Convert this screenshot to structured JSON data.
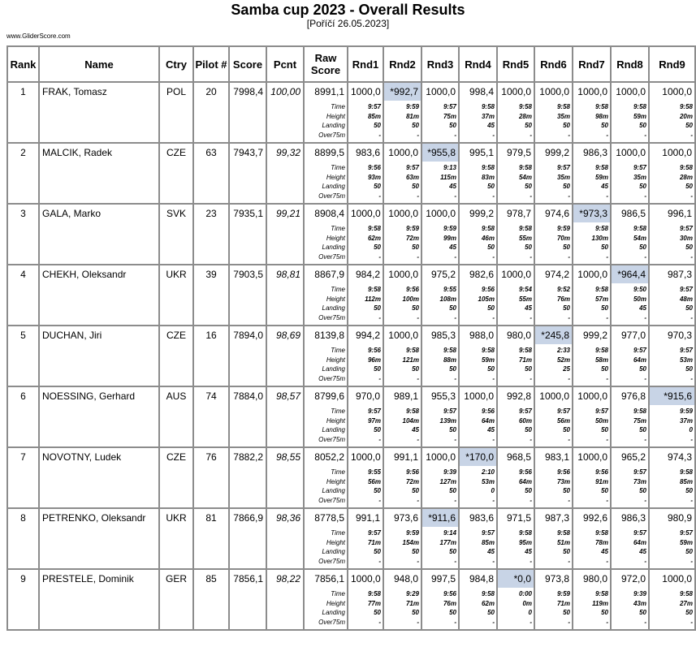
{
  "header": {
    "title": "Samba cup 2023 - Overall Results",
    "subtitle": "[Poříčí 26.05.2023]",
    "site": "www.GliderScore.com"
  },
  "columns": [
    "Rank",
    "Name",
    "Ctry",
    "Pilot #",
    "Score",
    "Pcnt",
    "Raw Score",
    "Rnd1",
    "Rnd2",
    "Rnd3",
    "Rnd4",
    "Rnd5",
    "Rnd6",
    "Rnd7",
    "Rnd8",
    "Rnd9"
  ],
  "detail_labels": [
    "Time",
    "Height",
    "Landing",
    "Over75m"
  ],
  "highlight_color": "#c8d4e6",
  "rows": [
    {
      "rank": "1",
      "name": "FRAK, Tomasz",
      "ctry": "POL",
      "pilot": "20",
      "score": "7998,4",
      "pcnt": "100,00",
      "raw": "8991,1",
      "rounds": [
        "1000,0",
        "*992,7",
        "1000,0",
        "998,4",
        "1000,0",
        "1000,0",
        "1000,0",
        "1000,0",
        "1000,0"
      ],
      "time": [
        "9:57",
        "9:59",
        "9:57",
        "9:58",
        "9:58",
        "9:58",
        "9:58",
        "9:58",
        "9:58"
      ],
      "height": [
        "85m",
        "81m",
        "75m",
        "37m",
        "28m",
        "35m",
        "98m",
        "59m",
        "20m"
      ],
      "landing": [
        "50",
        "50",
        "50",
        "45",
        "50",
        "50",
        "50",
        "50",
        "50"
      ],
      "over75m": [
        "-",
        "-",
        "-",
        "-",
        "-",
        "-",
        "-",
        "-",
        "-"
      ]
    },
    {
      "rank": "2",
      "name": "MALCIK, Radek",
      "ctry": "CZE",
      "pilot": "63",
      "score": "7943,7",
      "pcnt": "99,32",
      "raw": "8899,5",
      "rounds": [
        "983,6",
        "1000,0",
        "*955,8",
        "995,1",
        "979,5",
        "999,2",
        "986,3",
        "1000,0",
        "1000,0"
      ],
      "time": [
        "9:56",
        "9:57",
        "9:13",
        "9:58",
        "9:58",
        "9:57",
        "9:58",
        "9:57",
        "9:58"
      ],
      "height": [
        "93m",
        "63m",
        "115m",
        "83m",
        "54m",
        "35m",
        "59m",
        "35m",
        "28m"
      ],
      "landing": [
        "50",
        "50",
        "45",
        "50",
        "50",
        "50",
        "45",
        "50",
        "50"
      ],
      "over75m": [
        "-",
        "-",
        "-",
        "-",
        "-",
        "-",
        "-",
        "-",
        "-"
      ]
    },
    {
      "rank": "3",
      "name": "GALA, Marko",
      "ctry": "SVK",
      "pilot": "23",
      "score": "7935,1",
      "pcnt": "99,21",
      "raw": "8908,4",
      "rounds": [
        "1000,0",
        "1000,0",
        "1000,0",
        "999,2",
        "978,7",
        "974,6",
        "*973,3",
        "986,5",
        "996,1"
      ],
      "time": [
        "9:58",
        "9:59",
        "9:59",
        "9:58",
        "9:58",
        "9:59",
        "9:58",
        "9:58",
        "9:57"
      ],
      "height": [
        "62m",
        "72m",
        "99m",
        "46m",
        "55m",
        "70m",
        "130m",
        "54m",
        "30m"
      ],
      "landing": [
        "50",
        "50",
        "45",
        "50",
        "50",
        "50",
        "50",
        "50",
        "50"
      ],
      "over75m": [
        "-",
        "-",
        "-",
        "-",
        "-",
        "-",
        "-",
        "-",
        "-"
      ]
    },
    {
      "rank": "4",
      "name": "CHEKH, Oleksandr",
      "ctry": "UKR",
      "pilot": "39",
      "score": "7903,5",
      "pcnt": "98,81",
      "raw": "8867,9",
      "rounds": [
        "984,2",
        "1000,0",
        "975,2",
        "982,6",
        "1000,0",
        "974,2",
        "1000,0",
        "*964,4",
        "987,3"
      ],
      "time": [
        "9:58",
        "9:56",
        "9:55",
        "9:56",
        "9:54",
        "9:52",
        "9:58",
        "9:50",
        "9:57"
      ],
      "height": [
        "112m",
        "100m",
        "108m",
        "105m",
        "55m",
        "76m",
        "57m",
        "50m",
        "48m"
      ],
      "landing": [
        "50",
        "50",
        "50",
        "50",
        "45",
        "50",
        "50",
        "45",
        "50"
      ],
      "over75m": [
        "-",
        "-",
        "-",
        "-",
        "-",
        "-",
        "-",
        "-",
        "-"
      ]
    },
    {
      "rank": "5",
      "name": "DUCHAN, Jiri",
      "ctry": "CZE",
      "pilot": "16",
      "score": "7894,0",
      "pcnt": "98,69",
      "raw": "8139,8",
      "rounds": [
        "994,2",
        "1000,0",
        "985,3",
        "988,0",
        "980,0",
        "*245,8",
        "999,2",
        "977,0",
        "970,3"
      ],
      "time": [
        "9:56",
        "9:58",
        "9:58",
        "9:58",
        "9:58",
        "2:33",
        "9:58",
        "9:57",
        "9:57"
      ],
      "height": [
        "96m",
        "121m",
        "88m",
        "59m",
        "71m",
        "52m",
        "58m",
        "64m",
        "53m"
      ],
      "landing": [
        "50",
        "50",
        "50",
        "50",
        "50",
        "25",
        "50",
        "50",
        "50"
      ],
      "over75m": [
        "-",
        "-",
        "-",
        "-",
        "-",
        "-",
        "-",
        "-",
        "-"
      ]
    },
    {
      "rank": "6",
      "name": "NOESSING, Gerhard",
      "ctry": "AUS",
      "pilot": "74",
      "score": "7884,0",
      "pcnt": "98,57",
      "raw": "8799,6",
      "rounds": [
        "970,0",
        "989,1",
        "955,3",
        "1000,0",
        "992,8",
        "1000,0",
        "1000,0",
        "976,8",
        "*915,6"
      ],
      "time": [
        "9:57",
        "9:58",
        "9:57",
        "9:56",
        "9:57",
        "9:57",
        "9:57",
        "9:58",
        "9:59"
      ],
      "height": [
        "97m",
        "104m",
        "139m",
        "64m",
        "60m",
        "56m",
        "50m",
        "75m",
        "37m"
      ],
      "landing": [
        "50",
        "45",
        "50",
        "45",
        "50",
        "50",
        "50",
        "50",
        "0"
      ],
      "over75m": [
        "-",
        "-",
        "-",
        "-",
        "-",
        "-",
        "-",
        "-",
        "-"
      ]
    },
    {
      "rank": "7",
      "name": "NOVOTNY, Ludek",
      "ctry": "CZE",
      "pilot": "76",
      "score": "7882,2",
      "pcnt": "98,55",
      "raw": "8052,2",
      "rounds": [
        "1000,0",
        "991,1",
        "1000,0",
        "*170,0",
        "968,5",
        "983,1",
        "1000,0",
        "965,2",
        "974,3"
      ],
      "time": [
        "9:55",
        "9:56",
        "9:39",
        "2:10",
        "9:56",
        "9:56",
        "9:56",
        "9:57",
        "9:58"
      ],
      "height": [
        "56m",
        "72m",
        "127m",
        "53m",
        "64m",
        "73m",
        "91m",
        "73m",
        "85m"
      ],
      "landing": [
        "50",
        "50",
        "50",
        "0",
        "50",
        "50",
        "50",
        "50",
        "50"
      ],
      "over75m": [
        "-",
        "-",
        "-",
        "-",
        "-",
        "-",
        "-",
        "-",
        "-"
      ]
    },
    {
      "rank": "8",
      "name": "PETRENKO, Oleksandr",
      "ctry": "UKR",
      "pilot": "81",
      "score": "7866,9",
      "pcnt": "98,36",
      "raw": "8778,5",
      "rounds": [
        "991,1",
        "973,6",
        "*911,6",
        "983,6",
        "971,5",
        "987,3",
        "992,6",
        "986,3",
        "980,9"
      ],
      "time": [
        "9:57",
        "9:59",
        "9:14",
        "9:57",
        "9:58",
        "9:58",
        "9:58",
        "9:57",
        "9:57"
      ],
      "height": [
        "71m",
        "154m",
        "177m",
        "85m",
        "95m",
        "51m",
        "78m",
        "64m",
        "59m"
      ],
      "landing": [
        "50",
        "50",
        "50",
        "45",
        "45",
        "50",
        "45",
        "45",
        "50"
      ],
      "over75m": [
        "-",
        "-",
        "-",
        "-",
        "-",
        "-",
        "-",
        "-",
        "-"
      ]
    },
    {
      "rank": "9",
      "name": "PRESTELE, Dominik",
      "ctry": "GER",
      "pilot": "85",
      "score": "7856,1",
      "pcnt": "98,22",
      "raw": "7856,1",
      "rounds": [
        "1000,0",
        "948,0",
        "997,5",
        "984,8",
        "*0,0",
        "973,8",
        "980,0",
        "972,0",
        "1000,0"
      ],
      "time": [
        "9:58",
        "9:29",
        "9:56",
        "9:58",
        "0:00",
        "9:59",
        "9:58",
        "9:39",
        "9:58"
      ],
      "height": [
        "77m",
        "71m",
        "76m",
        "62m",
        "0m",
        "71m",
        "119m",
        "43m",
        "27m"
      ],
      "landing": [
        "50",
        "50",
        "50",
        "50",
        "0",
        "50",
        "50",
        "50",
        "50"
      ],
      "over75m": [
        "-",
        "-",
        "-",
        "-",
        "-",
        "-",
        "-",
        "-",
        "-"
      ]
    }
  ]
}
